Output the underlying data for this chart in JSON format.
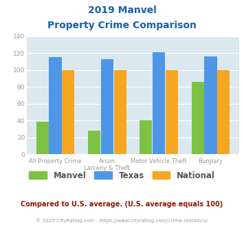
{
  "title_line1": "2019 Manvel",
  "title_line2": "Property Crime Comparison",
  "cat_labels_line1": [
    "All Property Crime",
    "Arson",
    "Motor Vehicle Theft",
    "Burglary"
  ],
  "cat_labels_line2": [
    "",
    "Larceny & Theft",
    "",
    ""
  ],
  "manvel": [
    39,
    28,
    40,
    86
  ],
  "texas": [
    115,
    113,
    121,
    116
  ],
  "national": [
    100,
    100,
    100,
    100
  ],
  "color_manvel": "#7dc242",
  "color_texas": "#4d96e8",
  "color_national": "#f5a623",
  "ylim": [
    0,
    140
  ],
  "yticks": [
    0,
    20,
    40,
    60,
    80,
    100,
    120,
    140
  ],
  "plot_bg": "#dce8f0",
  "subtitle": "Compared to U.S. average. (U.S. average equals 100)",
  "footer": "© 2025 CityRating.com - https://www.cityrating.com/crime-statistics/",
  "title_color": "#1a5fa8",
  "subtitle_color": "#8b1a00",
  "footer_color": "#999999",
  "tick_color": "#999999",
  "legend_text_color": "#555555"
}
